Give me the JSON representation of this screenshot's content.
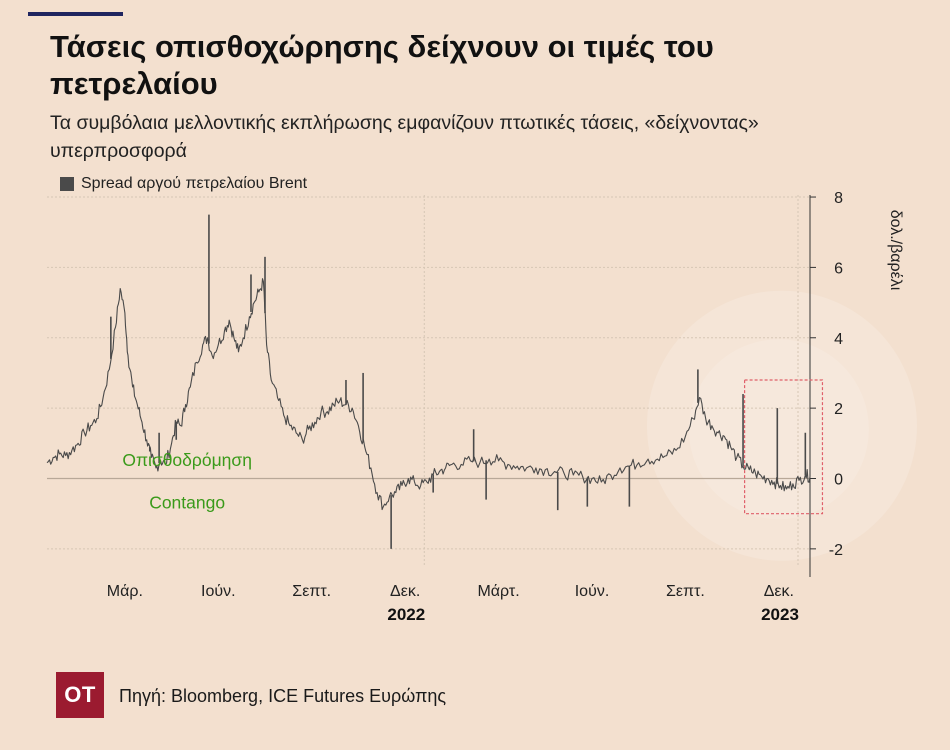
{
  "header": {
    "title": "Τάσεις οπισθοχώρησης δείχνουν οι τιμές του πετρελαίου",
    "subtitle": "Τα συμβόλαια μελλοντικής εκπλήρωσης εμφανίζουν πτωτικές τάσεις, «δείχνοντας» υπερπροσφορά"
  },
  "legend": {
    "label": "Spread αργού πετρελαίου Brent",
    "color": "#4a4a4a"
  },
  "footer": {
    "logo_text": "OT",
    "source": "Πηγή: Bloomberg, ICE Futures Ευρώπης",
    "logo_color": "#9b1b30"
  },
  "colors": {
    "background": "#f3e0cf",
    "accent": "#1f2560",
    "annotation": "#3a9a1a",
    "highlight_box": "#e0606a",
    "series": "#4a4a4a"
  },
  "chart_data": {
    "type": "line",
    "y_axis_label": "δολ./βαρέλι",
    "ylim": [
      -2.8,
      8.2
    ],
    "y_ticks": [
      8,
      6,
      4,
      2,
      0,
      -2
    ],
    "x_tick_labels": [
      "Μάρ.",
      "Ιούν.",
      "Σεπτ.",
      "Δεκ.",
      "Μάρτ.",
      "Ιούν.",
      "Σεπτ.",
      "Δεκ."
    ],
    "x_tick_months": [
      2.5,
      5.5,
      8.5,
      11.5,
      14.5,
      17.5,
      20.5,
      23.5
    ],
    "year_labels": [
      {
        "label": "2022",
        "month": 12.5
      },
      {
        "label": "2023",
        "month": 24.5
      }
    ],
    "annotations": [
      {
        "text": "Οπισθοδρόμηση",
        "month": 4.5,
        "y": 0.35
      },
      {
        "text": "Contango",
        "month": 4.5,
        "y": -0.85
      }
    ],
    "highlight": {
      "x_start_month": 22.4,
      "x_end_month": 24.9,
      "y_top": 2.8,
      "y_bottom": -1.0
    },
    "series": [
      {
        "name": "Spread αργού πετρελαίου Brent",
        "points": [
          [
            0.0,
            0.45
          ],
          [
            0.2,
            0.6
          ],
          [
            0.4,
            0.7
          ],
          [
            0.6,
            0.65
          ],
          [
            0.8,
            0.8
          ],
          [
            1.0,
            1.0
          ],
          [
            1.2,
            1.3
          ],
          [
            1.4,
            1.5
          ],
          [
            1.6,
            1.7
          ],
          [
            1.8,
            2.3
          ],
          [
            2.0,
            3.1
          ],
          [
            2.2,
            4.3
          ],
          [
            2.35,
            5.4
          ],
          [
            2.5,
            4.7
          ],
          [
            2.6,
            3.5
          ],
          [
            2.75,
            2.6
          ],
          [
            2.9,
            2.1
          ],
          [
            3.05,
            1.6
          ],
          [
            3.2,
            1.1
          ],
          [
            3.35,
            0.6
          ],
          [
            3.5,
            0.3
          ],
          [
            3.65,
            0.5
          ],
          [
            3.8,
            0.4
          ],
          [
            4.0,
            1.0
          ],
          [
            4.15,
            1.6
          ],
          [
            4.3,
            1.5
          ],
          [
            4.45,
            2.1
          ],
          [
            4.6,
            2.6
          ],
          [
            4.8,
            3.3
          ],
          [
            5.0,
            3.8
          ],
          [
            5.15,
            4.0
          ],
          [
            5.3,
            3.5
          ],
          [
            5.5,
            3.8
          ],
          [
            5.7,
            4.2
          ],
          [
            5.85,
            4.5
          ],
          [
            6.0,
            4.0
          ],
          [
            6.15,
            3.6
          ],
          [
            6.3,
            4.0
          ],
          [
            6.5,
            4.6
          ],
          [
            6.65,
            5.0
          ],
          [
            6.8,
            5.3
          ],
          [
            6.95,
            5.6
          ],
          [
            7.05,
            3.8
          ],
          [
            7.2,
            2.8
          ],
          [
            7.4,
            2.3
          ],
          [
            7.6,
            1.8
          ],
          [
            7.8,
            1.5
          ],
          [
            8.0,
            1.3
          ],
          [
            8.2,
            1.1
          ],
          [
            8.4,
            1.4
          ],
          [
            8.6,
            1.6
          ],
          [
            8.8,
            1.9
          ],
          [
            9.0,
            1.9
          ],
          [
            9.2,
            2.1
          ],
          [
            9.4,
            2.2
          ],
          [
            9.6,
            2.1
          ],
          [
            9.8,
            2.0
          ],
          [
            10.0,
            1.5
          ],
          [
            10.2,
            0.9
          ],
          [
            10.4,
            0.3
          ],
          [
            10.6,
            -0.4
          ],
          [
            10.8,
            -0.8
          ],
          [
            11.0,
            -0.5
          ],
          [
            11.2,
            -0.4
          ],
          [
            11.4,
            -0.2
          ],
          [
            11.6,
            0.0
          ],
          [
            11.8,
            -0.1
          ],
          [
            12.0,
            -0.2
          ],
          [
            12.2,
            -0.1
          ],
          [
            12.4,
            0.1
          ],
          [
            12.6,
            0.2
          ],
          [
            12.8,
            0.3
          ],
          [
            13.0,
            0.4
          ],
          [
            13.3,
            0.4
          ],
          [
            13.6,
            0.5
          ],
          [
            13.9,
            0.45
          ],
          [
            14.2,
            0.55
          ],
          [
            14.5,
            0.5
          ],
          [
            14.8,
            0.4
          ],
          [
            15.1,
            0.35
          ],
          [
            15.4,
            0.3
          ],
          [
            15.7,
            0.3
          ],
          [
            16.0,
            0.25
          ],
          [
            16.3,
            0.2
          ],
          [
            16.6,
            0.15
          ],
          [
            16.9,
            0.1
          ],
          [
            17.2,
            0.05
          ],
          [
            17.5,
            0.0
          ],
          [
            17.8,
            -0.1
          ],
          [
            18.1,
            0.1
          ],
          [
            18.4,
            0.3
          ],
          [
            18.7,
            0.35
          ],
          [
            19.0,
            0.45
          ],
          [
            19.3,
            0.55
          ],
          [
            19.6,
            0.55
          ],
          [
            19.9,
            0.65
          ],
          [
            20.2,
            0.8
          ],
          [
            20.5,
            1.2
          ],
          [
            20.75,
            1.7
          ],
          [
            20.95,
            2.3
          ],
          [
            21.15,
            1.7
          ],
          [
            21.35,
            1.5
          ],
          [
            21.55,
            1.3
          ],
          [
            21.75,
            1.2
          ],
          [
            21.95,
            0.9
          ],
          [
            22.15,
            0.6
          ],
          [
            22.35,
            0.35
          ],
          [
            22.55,
            0.25
          ],
          [
            22.75,
            0.15
          ],
          [
            22.95,
            0.05
          ],
          [
            23.15,
            0.0
          ],
          [
            23.35,
            -0.1
          ],
          [
            23.55,
            -0.2
          ],
          [
            23.75,
            -0.3
          ],
          [
            23.95,
            -0.15
          ],
          [
            24.15,
            -0.05
          ],
          [
            24.35,
            0.1
          ],
          [
            24.5,
            0.05
          ]
        ],
        "spikes": [
          [
            2.05,
            4.6
          ],
          [
            3.3,
            0.9
          ],
          [
            3.6,
            1.3
          ],
          [
            4.15,
            1.1
          ],
          [
            5.2,
            7.5
          ],
          [
            6.55,
            5.8
          ],
          [
            7.0,
            6.3
          ],
          [
            9.6,
            2.8
          ],
          [
            10.15,
            3.0
          ],
          [
            11.05,
            -2.0
          ],
          [
            12.4,
            -0.4
          ],
          [
            13.7,
            1.4
          ],
          [
            14.1,
            -0.6
          ],
          [
            16.4,
            -0.9
          ],
          [
            17.35,
            -0.8
          ],
          [
            18.7,
            -0.8
          ],
          [
            20.9,
            3.1
          ],
          [
            22.35,
            2.4
          ],
          [
            23.45,
            2.0
          ],
          [
            24.35,
            1.3
          ]
        ]
      }
    ]
  }
}
